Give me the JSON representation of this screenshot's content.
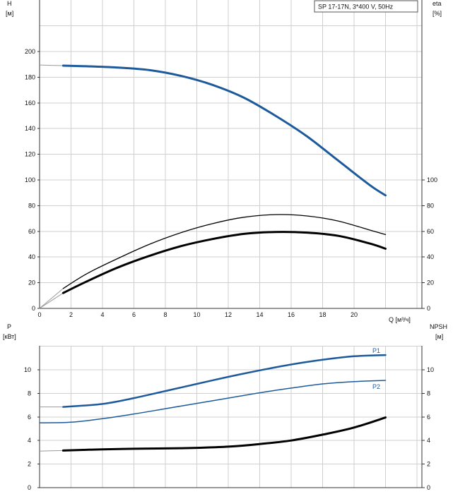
{
  "chart_data": [
    {
      "type": "line",
      "title_box": "SP 17-17N, 3*400 V, 50Hz",
      "left_axis": {
        "label_top": "H",
        "label_unit": "[м]",
        "range": [
          0,
          220
        ],
        "ticks": [
          "0",
          "20",
          "40",
          "60",
          "80",
          "100",
          "120",
          "140",
          "160",
          "180",
          "200"
        ]
      },
      "right_axis": {
        "label_top": "eta",
        "label_unit": "[%]",
        "ticks": [
          "0",
          "20",
          "40",
          "60",
          "80",
          "100"
        ]
      },
      "x_axis": {
        "label": "Q [м³/ч]",
        "range": [
          0,
          24
        ],
        "ticks": [
          "0",
          "2",
          "4",
          "6",
          "8",
          "10",
          "12",
          "14",
          "16",
          "18",
          "20"
        ]
      },
      "series": [
        {
          "id": "H",
          "color": "#1c5a9c",
          "width": 3,
          "x": [
            1.5,
            3,
            5,
            7,
            9,
            11,
            13,
            15,
            17,
            19,
            21,
            22
          ],
          "y": [
            189,
            188.5,
            187.5,
            185.5,
            181,
            174,
            164,
            150,
            134,
            115,
            96,
            88
          ],
          "ext_x": [
            0,
            1.5
          ],
          "ext_y": [
            189.5,
            189
          ]
        },
        {
          "id": "eta_total",
          "color": "#000000",
          "width": 1.3,
          "x": [
            1.5,
            3,
            5,
            7,
            9,
            11,
            13,
            15,
            17,
            19,
            21,
            22
          ],
          "y": [
            15.5,
            27,
            39,
            50,
            59,
            66,
            71,
            73,
            72,
            68,
            61,
            57.5
          ],
          "ext_x": [
            0,
            1.5
          ],
          "ext_y": [
            0,
            15.5
          ]
        },
        {
          "id": "eta_pump",
          "color": "#000000",
          "width": 3,
          "x": [
            1.5,
            3,
            5,
            7,
            9,
            11,
            13,
            15,
            17,
            19,
            21,
            22
          ],
          "y": [
            12,
            21,
            32,
            41,
            48.5,
            54,
            58,
            59.5,
            59,
            56.5,
            50.5,
            46.5
          ],
          "ext_x": [
            0,
            1.5
          ],
          "ext_y": [
            0,
            12
          ]
        }
      ]
    },
    {
      "type": "line",
      "left_axis": {
        "label_top": "P",
        "label_unit": "[кВт]",
        "range": [
          0,
          12
        ],
        "ticks": [
          "0",
          "2",
          "4",
          "6",
          "8",
          "10"
        ]
      },
      "right_axis": {
        "label_top": "NPSH",
        "label_unit": "[м]",
        "ticks": [
          "0",
          "2",
          "4",
          "6",
          "8",
          "10"
        ]
      },
      "x_axis": {
        "range": [
          0,
          24
        ]
      },
      "series": [
        {
          "id": "P1",
          "name": "P1",
          "color": "#1c5a9c",
          "width": 2.5,
          "x": [
            1.5,
            4,
            6,
            8,
            10,
            12,
            14,
            16,
            18,
            20,
            22
          ],
          "y": [
            6.85,
            7.1,
            7.6,
            8.2,
            8.8,
            9.4,
            9.95,
            10.45,
            10.85,
            11.15,
            11.25
          ],
          "ext_x": [
            0,
            1.5
          ],
          "ext_y": [
            6.85,
            6.85
          ]
        },
        {
          "id": "P2",
          "name": "P2",
          "color": "#1c5a9c",
          "width": 1.5,
          "x": [
            0,
            2,
            4,
            6,
            8,
            10,
            12,
            14,
            16,
            18,
            20,
            22
          ],
          "y": [
            5.5,
            5.55,
            5.85,
            6.25,
            6.7,
            7.15,
            7.6,
            8.05,
            8.45,
            8.8,
            9.0,
            9.1
          ]
        },
        {
          "id": "NPSH",
          "color": "#000000",
          "width": 3,
          "x": [
            1.5,
            4,
            6,
            8,
            10,
            12,
            14,
            16,
            18,
            20,
            22
          ],
          "y": [
            3.15,
            3.25,
            3.3,
            3.33,
            3.38,
            3.48,
            3.7,
            4.0,
            4.5,
            5.1,
            5.95
          ],
          "ext_x": [
            0,
            1.5
          ],
          "ext_y": [
            3.1,
            3.15
          ]
        }
      ]
    }
  ]
}
